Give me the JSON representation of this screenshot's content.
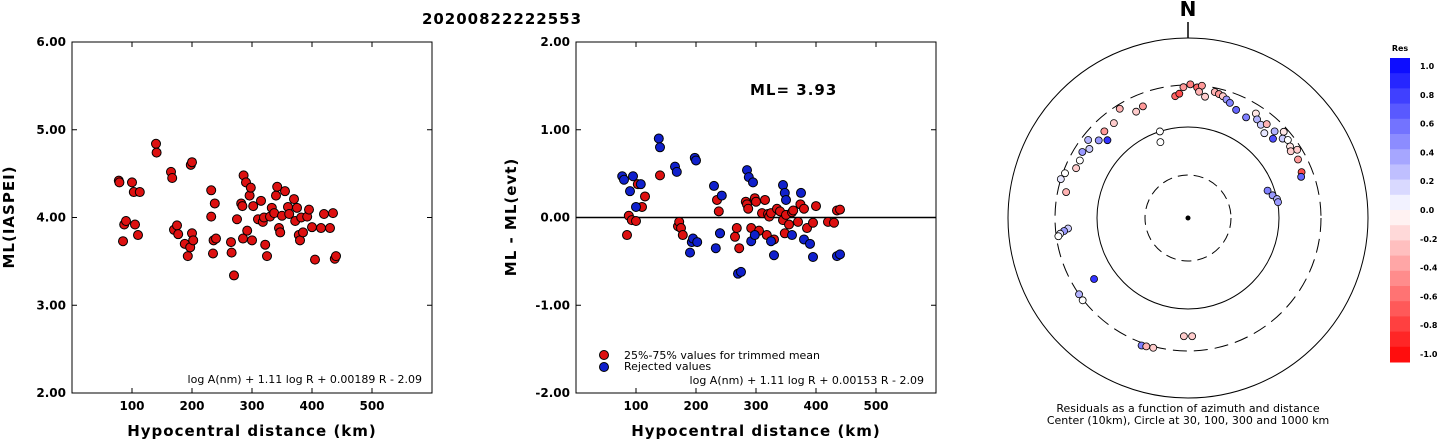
{
  "title": "20200822222553",
  "colors": {
    "accepted": "#dd1010",
    "rejected": "#1020cc",
    "edge": "#000000"
  },
  "chart_data": [
    {
      "id": "left",
      "type": "scatter",
      "xlabel": "Hypocentral distance (km)",
      "ylabel": "ML(IASPEI)",
      "xlim": [
        0,
        600
      ],
      "ylim": [
        2,
        6
      ],
      "xticks": [
        "100",
        "200",
        "300",
        "400",
        "500"
      ],
      "yticks": [
        "2.00",
        "3.00",
        "4.00",
        "5.00",
        "6.00"
      ],
      "formula": "log A(nm) + 1.11 log R + 0.00189 R - 2.09",
      "series": [
        {
          "color": "accepted",
          "x": [
            78,
            79,
            85,
            87,
            90,
            100,
            103,
            105,
            110,
            113,
            140,
            141,
            165,
            167,
            170,
            175,
            177,
            188,
            193,
            197,
            198,
            200,
            200,
            202,
            232,
            232,
            235,
            236,
            238,
            240,
            265,
            266,
            270,
            275,
            282,
            284,
            285,
            286,
            290,
            292,
            296,
            298,
            300,
            302,
            310,
            315,
            318,
            320,
            322,
            325,
            330,
            333,
            337,
            340,
            342,
            345,
            347,
            350,
            355,
            360,
            362,
            370,
            372,
            375,
            378,
            380,
            382,
            385,
            392,
            395,
            400,
            405,
            415,
            420,
            430,
            435,
            438,
            440
          ],
          "y": [
            4.42,
            4.4,
            3.73,
            3.92,
            3.96,
            4.4,
            4.29,
            3.92,
            3.8,
            4.29,
            4.84,
            4.74,
            4.52,
            4.45,
            3.86,
            3.91,
            3.81,
            3.7,
            3.56,
            3.66,
            4.6,
            4.63,
            3.82,
            3.74,
            4.31,
            4.01,
            3.59,
            3.74,
            4.16,
            3.76,
            3.72,
            3.6,
            3.34,
            3.98,
            4.16,
            4.13,
            3.76,
            4.48,
            4.4,
            3.85,
            4.25,
            4.34,
            3.74,
            4.13,
            3.98,
            4.19,
            3.95,
            4.0,
            3.69,
            3.56,
            4.01,
            4.11,
            4.05,
            4.25,
            4.35,
            3.88,
            3.83,
            4.02,
            4.3,
            4.12,
            4.04,
            4.21,
            3.96,
            4.11,
            3.8,
            3.74,
            4.0,
            3.83,
            4.01,
            4.09,
            3.89,
            3.52,
            3.88,
            4.04,
            3.88,
            4.05,
            3.53,
            3.56
          ]
        }
      ]
    },
    {
      "id": "middle",
      "type": "scatter",
      "xlabel": "Hypocentral distance (km)",
      "ylabel": "ML - ML(evt)",
      "xlim": [
        0,
        600
      ],
      "ylim": [
        -2,
        2
      ],
      "xticks": [
        "100",
        "200",
        "300",
        "400",
        "500"
      ],
      "yticks": [
        "-2.00",
        "-1.00",
        "0.00",
        "1.00",
        "2.00"
      ],
      "hline": 0,
      "annotation": "ML= 3.93",
      "formula": "log A(nm) + 1.11 log R + 0.00153 R - 2.09",
      "legend": {
        "position": "bottom-left",
        "items": [
          {
            "label": "25%-75% values for trimmed mean",
            "color": "accepted"
          },
          {
            "label": "Rejected values",
            "color": "rejected"
          }
        ]
      },
      "series": [
        {
          "name": "25%-75% values for trimmed mean",
          "color": "accepted",
          "x": [
            85,
            88,
            93,
            100,
            103,
            110,
            115,
            140,
            170,
            172,
            175,
            178,
            235,
            238,
            240,
            265,
            268,
            272,
            283,
            285,
            287,
            292,
            298,
            300,
            305,
            310,
            315,
            318,
            320,
            322,
            325,
            330,
            335,
            340,
            345,
            348,
            350,
            355,
            360,
            362,
            370,
            374,
            380,
            385,
            395,
            400,
            420,
            430,
            435,
            440
          ],
          "y": [
            -0.2,
            0.02,
            -0.03,
            -0.04,
            0.38,
            0.12,
            0.24,
            0.48,
            -0.1,
            -0.05,
            -0.12,
            -0.2,
            0.2,
            0.07,
            -0.18,
            -0.22,
            -0.12,
            -0.35,
            0.18,
            0.15,
            0.1,
            -0.12,
            0.22,
            0.18,
            -0.15,
            0.05,
            0.2,
            -0.2,
            0.04,
            0.01,
            0.05,
            -0.25,
            0.1,
            0.07,
            -0.03,
            -0.18,
            0.03,
            -0.08,
            0.06,
            0.08,
            -0.05,
            0.15,
            0.1,
            -0.12,
            -0.06,
            0.13,
            -0.05,
            -0.06,
            0.08,
            0.09
          ]
        },
        {
          "name": "Rejected values",
          "color": "rejected",
          "x": [
            77,
            80,
            90,
            95,
            100,
            108,
            138,
            140,
            165,
            168,
            190,
            193,
            195,
            198,
            200,
            202,
            230,
            233,
            240,
            243,
            270,
            275,
            285,
            288,
            292,
            295,
            298,
            325,
            330,
            345,
            348,
            350,
            360,
            375,
            380,
            390,
            395,
            435,
            440
          ],
          "y": [
            0.47,
            0.43,
            0.3,
            0.47,
            0.12,
            0.38,
            0.9,
            0.8,
            0.58,
            0.52,
            -0.4,
            -0.28,
            -0.24,
            0.68,
            0.65,
            -0.28,
            0.36,
            -0.35,
            -0.18,
            0.25,
            -0.64,
            -0.62,
            0.54,
            0.46,
            -0.27,
            0.4,
            -0.2,
            -0.27,
            -0.43,
            0.37,
            0.28,
            0.2,
            -0.2,
            0.28,
            -0.25,
            -0.3,
            -0.45,
            -0.44,
            -0.42
          ]
        }
      ]
    },
    {
      "id": "polar",
      "type": "scatter",
      "caption1": "Residuals as a function of azimuth and distance",
      "caption2": "Center (10km), Circle at 30, 100, 300 and 1000 km",
      "north_label": "N",
      "colorbar": {
        "title": "Res",
        "min": -1.0,
        "max": 1.0,
        "labels": [
          "1.0",
          "0.8",
          "0.6",
          "0.4",
          "0.2",
          "0.0",
          "-0.2",
          "-0.4",
          "-0.6",
          "-0.8",
          "-1.0"
        ]
      },
      "stations": [
        {
          "az": -2,
          "dist": 290,
          "res": -0.4
        },
        {
          "az": 1,
          "dist": 310,
          "res": -0.5
        },
        {
          "az": 4,
          "dist": 290,
          "res": -0.6
        },
        {
          "az": 6,
          "dist": 300,
          "res": -0.4
        },
        {
          "az": -6,
          "dist": 250,
          "res": -0.6
        },
        {
          "az": -4,
          "dist": 260,
          "res": -0.7
        },
        {
          "az": 5,
          "dist": 270,
          "res": -0.3
        },
        {
          "az": 8,
          "dist": 250,
          "res": -0.2
        },
        {
          "az": 12,
          "dist": 280,
          "res": -0.3
        },
        {
          "az": 14,
          "dist": 275,
          "res": -0.4
        },
        {
          "az": 16,
          "dist": 270,
          "res": -0.2
        },
        {
          "az": 18,
          "dist": 260,
          "res": 0.4
        },
        {
          "az": 20,
          "dist": 250,
          "res": 0.5
        },
        {
          "az": 24,
          "dist": 230,
          "res": 0.6
        },
        {
          "az": 30,
          "dist": 220,
          "res": 0.5
        },
        {
          "az": 33,
          "dist": 260,
          "res": -0.1
        },
        {
          "az": 35,
          "dist": 240,
          "res": 0.3
        },
        {
          "az": 38,
          "dist": 230,
          "res": 0.2
        },
        {
          "az": 40,
          "dist": 250,
          "res": -0.3
        },
        {
          "az": 42,
          "dist": 210,
          "res": 0.1
        },
        {
          "az": 45,
          "dist": 250,
          "res": 0.3
        },
        {
          "az": 47,
          "dist": 220,
          "res": 0.7
        },
        {
          "az": 48,
          "dist": 280,
          "res": -0.1
        },
        {
          "az": 50,
          "dist": 255,
          "res": 0.2
        },
        {
          "az": 52,
          "dist": 270,
          "res": 0.0
        },
        {
          "az": 55,
          "dist": 260,
          "res": -0.1
        },
        {
          "az": 57,
          "dist": 250,
          "res": -0.2
        },
        {
          "az": 58,
          "dist": 280,
          "res": -0.2
        },
        {
          "az": 62,
          "dist": 260,
          "res": -0.4
        },
        {
          "az": 68,
          "dist": 250,
          "res": -0.7
        },
        {
          "az": 70,
          "dist": 240,
          "res": 0.6
        },
        {
          "az": 71,
          "dist": 90,
          "res": 0.5
        },
        {
          "az": 75,
          "dist": 95,
          "res": 0.4
        },
        {
          "az": 78,
          "dist": 100,
          "res": 0.3
        },
        {
          "az": 80,
          "dist": 102,
          "res": 0.4
        },
        {
          "az": -20,
          "dist": 85,
          "res": 0.0
        },
        {
          "az": -18,
          "dist": 100,
          "res": 0.0
        },
        {
          "az": -22,
          "dist": 240,
          "res": -0.4
        },
        {
          "az": -26,
          "dist": 230,
          "res": -0.2
        },
        {
          "az": -32,
          "dist": 280,
          "res": -0.3
        },
        {
          "az": -38,
          "dist": 240,
          "res": -0.2
        },
        {
          "az": -44,
          "dist": 240,
          "res": -0.4
        },
        {
          "az": -46,
          "dist": 200,
          "res": 0.8
        },
        {
          "az": -49,
          "dist": 230,
          "res": 0.4
        },
        {
          "az": -52,
          "dist": 270,
          "res": 0.3
        },
        {
          "az": -55,
          "dist": 240,
          "res": 0.2
        },
        {
          "az": -58,
          "dist": 260,
          "res": 0.4
        },
        {
          "az": -62,
          "dist": 250,
          "res": 0.0
        },
        {
          "az": -66,
          "dist": 250,
          "res": -0.2
        },
        {
          "az": -70,
          "dist": 290,
          "res": 0.0
        },
        {
          "az": -73,
          "dist": 300,
          "res": 0.1
        },
        {
          "az": -78,
          "dist": 260,
          "res": -0.3
        },
        {
          "az": -95,
          "dist": 240,
          "res": 0.2
        },
        {
          "az": -96,
          "dist": 260,
          "res": 0.4
        },
        {
          "az": -97,
          "dist": 280,
          "res": 0.1
        },
        {
          "az": -98,
          "dist": 290,
          "res": 0.0
        },
        {
          "az": -123,
          "dist": 200,
          "res": 0.8
        },
        {
          "az": -125,
          "dist": 300,
          "res": 0.3
        },
        {
          "az": -128,
          "dist": 310,
          "res": 0.0
        },
        {
          "az": -160,
          "dist": 340,
          "res": 0.5
        },
        {
          "az": -162,
          "dist": 330,
          "res": -0.3
        },
        {
          "az": -165,
          "dist": 320,
          "res": -0.2
        },
        {
          "az": 178,
          "dist": 230,
          "res": -0.2
        },
        {
          "az": -178,
          "dist": 230,
          "res": -0.2
        }
      ]
    }
  ]
}
